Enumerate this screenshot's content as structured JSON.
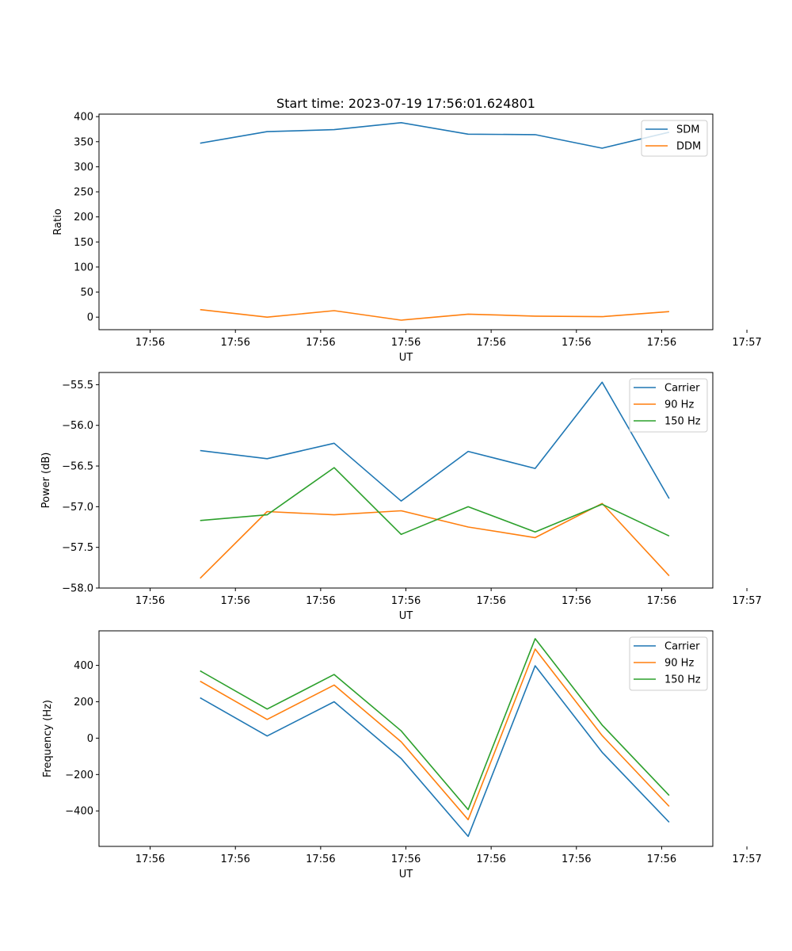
{
  "title": "Start time: 2023-07-19 17:56:01.624801",
  "colors": {
    "blue": "#1f77b4",
    "orange": "#ff7f0e",
    "green": "#2ca02c"
  },
  "chart_data": [
    {
      "type": "line",
      "xlabel": "UT",
      "ylabel": "Ratio",
      "xticks": [
        "17:56",
        "17:56",
        "17:56",
        "17:56",
        "17:56",
        "17:56",
        "17:56",
        "17:57"
      ],
      "xlim": [
        -0.1,
        1.1
      ],
      "ylim": [
        -25,
        405
      ],
      "yticks": [
        0,
        50,
        100,
        150,
        200,
        250,
        300,
        350,
        400
      ],
      "ytick_labels": [
        "0",
        "50",
        "100",
        "150",
        "200",
        "250",
        "300",
        "350",
        "400"
      ],
      "legend_loc": "upper-right",
      "x": [
        0.0977,
        0.2287,
        0.3597,
        0.4907,
        0.6217,
        0.7527,
        0.8837,
        1.0147
      ],
      "series": [
        {
          "name": "SDM",
          "color": "blue",
          "values": [
            347,
            370,
            374,
            388,
            365,
            364,
            337,
            369
          ]
        },
        {
          "name": "DDM",
          "color": "orange",
          "values": [
            15,
            0,
            13,
            -6,
            6,
            2,
            1,
            11
          ]
        }
      ]
    },
    {
      "type": "line",
      "xlabel": "UT",
      "ylabel": "Power (dB)",
      "xticks": [
        "17:56",
        "17:56",
        "17:56",
        "17:56",
        "17:56",
        "17:56",
        "17:56",
        "17:57"
      ],
      "xlim": [
        -0.1,
        1.1
      ],
      "ylim": [
        -58.0,
        -55.35
      ],
      "yticks": [
        -58.0,
        -57.5,
        -57.0,
        -56.5,
        -56.0,
        -55.5
      ],
      "ytick_labels": [
        "−58.0",
        "−57.5",
        "−57.0",
        "−56.5",
        "−56.0",
        "−55.5"
      ],
      "legend_loc": "upper-right",
      "x": [
        0.0977,
        0.2287,
        0.3597,
        0.4907,
        0.6217,
        0.7527,
        0.8837,
        1.0147
      ],
      "series": [
        {
          "name": "Carrier",
          "color": "blue",
          "values": [
            -56.31,
            -56.41,
            -56.22,
            -56.93,
            -56.32,
            -56.53,
            -55.47,
            -56.9
          ]
        },
        {
          "name": "90 Hz",
          "color": "orange",
          "values": [
            -57.88,
            -57.06,
            -57.1,
            -57.05,
            -57.25,
            -57.38,
            -56.96,
            -57.85
          ]
        },
        {
          "name": "150 Hz",
          "color": "green",
          "values": [
            -57.17,
            -57.1,
            -56.52,
            -57.34,
            -57.0,
            -57.31,
            -56.97,
            -57.36
          ]
        }
      ]
    },
    {
      "type": "line",
      "xlabel": "UT",
      "ylabel": "Frequency (Hz)",
      "xticks": [
        "17:56",
        "17:56",
        "17:56",
        "17:56",
        "17:56",
        "17:56",
        "17:56",
        "17:57"
      ],
      "xlim": [
        -0.1,
        1.1
      ],
      "ylim": [
        -595,
        590
      ],
      "yticks": [
        -400,
        -200,
        0,
        200,
        400
      ],
      "ytick_labels": [
        "−400",
        "−200",
        "0",
        "200",
        "400"
      ],
      "legend_loc": "upper-right",
      "x": [
        0.0977,
        0.2287,
        0.3597,
        0.4907,
        0.6217,
        0.7527,
        0.8837,
        1.0147
      ],
      "series": [
        {
          "name": "Carrier",
          "color": "blue",
          "values": [
            222,
            12,
            200,
            -112,
            -540,
            398,
            -78,
            -462
          ]
        },
        {
          "name": "90 Hz",
          "color": "orange",
          "values": [
            313,
            103,
            292,
            -20,
            -448,
            490,
            14,
            -375
          ]
        },
        {
          "name": "150 Hz",
          "color": "green",
          "values": [
            370,
            160,
            350,
            40,
            -393,
            547,
            72,
            -315
          ]
        }
      ]
    }
  ]
}
